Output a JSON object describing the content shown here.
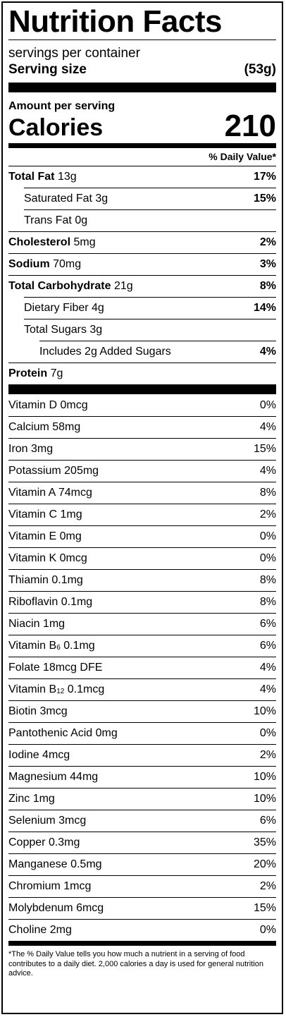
{
  "title": "Nutrition Facts",
  "servings_per_container": "servings per container",
  "serving_size": {
    "label": "Serving size",
    "value": "(53g)"
  },
  "amount_per_serving": "Amount per serving",
  "calories": {
    "label": "Calories",
    "value": "210"
  },
  "daily_value_header": "% Daily Value*",
  "nutrients": [
    {
      "name": "Total Fat",
      "amount": "13g",
      "dv": "17%"
    },
    {
      "name": "Saturated Fat",
      "amount": "3g",
      "dv": "15%"
    },
    {
      "name": "Trans Fat",
      "amount": "0g",
      "dv": ""
    },
    {
      "name": "Cholesterol",
      "amount": "5mg",
      "dv": "2%"
    },
    {
      "name": "Sodium",
      "amount": "70mg",
      "dv": "3%"
    },
    {
      "name": "Total Carbohydrate",
      "amount": "21g",
      "dv": "8%"
    },
    {
      "name": "Dietary Fiber",
      "amount": "4g",
      "dv": "14%"
    },
    {
      "name": "Total Sugars",
      "amount": "3g",
      "dv": ""
    },
    {
      "name": "Includes 2g Added Sugars",
      "amount": "",
      "dv": "4%"
    },
    {
      "name": "Protein",
      "amount": "7g",
      "dv": ""
    }
  ],
  "vitamins": [
    {
      "name": "Vitamin D",
      "amount": "0mcg",
      "dv": "0%"
    },
    {
      "name": "Calcium",
      "amount": "58mg",
      "dv": "4%"
    },
    {
      "name": "Iron",
      "amount": "3mg",
      "dv": "15%"
    },
    {
      "name": "Potassium",
      "amount": "205mg",
      "dv": "4%"
    },
    {
      "name": "Vitamin A",
      "amount": "74mcg",
      "dv": "8%"
    },
    {
      "name": "Vitamin C",
      "amount": "1mg",
      "dv": "2%"
    },
    {
      "name": "Vitamin E",
      "amount": "0mg",
      "dv": "0%"
    },
    {
      "name": "Vitamin K",
      "amount": "0mcg",
      "dv": "0%"
    },
    {
      "name": "Thiamin",
      "amount": "0.1mg",
      "dv": "8%"
    },
    {
      "name": "Riboflavin",
      "amount": "0.1mg",
      "dv": "8%"
    },
    {
      "name": "Niacin",
      "amount": "1mg",
      "dv": "6%"
    },
    {
      "name": "Vitamin B",
      "sub": "6",
      "amount": "0.1mg",
      "dv": "6%"
    },
    {
      "name": "Folate",
      "amount": "18mcg DFE",
      "dv": "4%"
    },
    {
      "name": "Vitamin B",
      "sub": "12",
      "amount": "0.1mcg",
      "dv": "4%"
    },
    {
      "name": "Biotin",
      "amount": "3mcg",
      "dv": "10%"
    },
    {
      "name": "Pantothenic Acid",
      "amount": "0mg",
      "dv": "0%"
    },
    {
      "name": "Iodine",
      "amount": "4mcg",
      "dv": "2%"
    },
    {
      "name": "Magnesium",
      "amount": "44mg",
      "dv": "10%"
    },
    {
      "name": "Zinc",
      "amount": "1mg",
      "dv": "10%"
    },
    {
      "name": "Selenium",
      "amount": "3mcg",
      "dv": "6%"
    },
    {
      "name": "Copper",
      "amount": "0.3mg",
      "dv": "35%"
    },
    {
      "name": "Manganese",
      "amount": "0.5mg",
      "dv": "20%"
    },
    {
      "name": "Chromium",
      "amount": "1mcg",
      "dv": "2%"
    },
    {
      "name": "Molybdenum",
      "amount": "6mcg",
      "dv": "15%"
    },
    {
      "name": "Choline",
      "amount": "2mg",
      "dv": "0%"
    }
  ],
  "footnote": "*The % Daily Value tells you how much a nutrient in a serving of food contributes to a daily diet. 2,000 calories a day is used for general nutrition advice."
}
